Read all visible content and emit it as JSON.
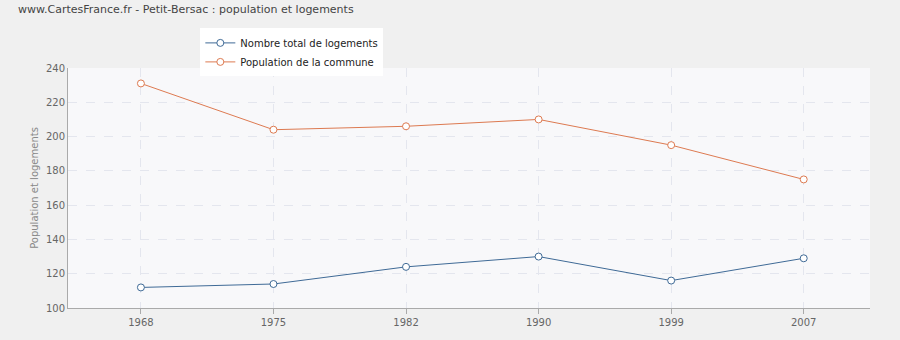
{
  "chart_data": {
    "type": "line",
    "title": "www.CartesFrance.fr - Petit-Bersac : population et logements",
    "y_label": "Population et logements",
    "categories": [
      "1968",
      "1975",
      "1982",
      "1990",
      "1999",
      "2007"
    ],
    "series": [
      {
        "name": "Nombre total de logements",
        "color": "#3f6a96",
        "values": [
          112,
          114,
          124,
          130,
          116,
          129
        ],
        "marker": "open-circle"
      },
      {
        "name": "Population de la commune",
        "color": "#dd7a51",
        "values": [
          231,
          204,
          206,
          210,
          195,
          175
        ],
        "marker": "open-circle"
      }
    ],
    "ylim": [
      100,
      240
    ],
    "yticks": [
      100,
      120,
      140,
      160,
      180,
      200,
      220,
      240
    ],
    "grid": true,
    "legend": "top left"
  }
}
